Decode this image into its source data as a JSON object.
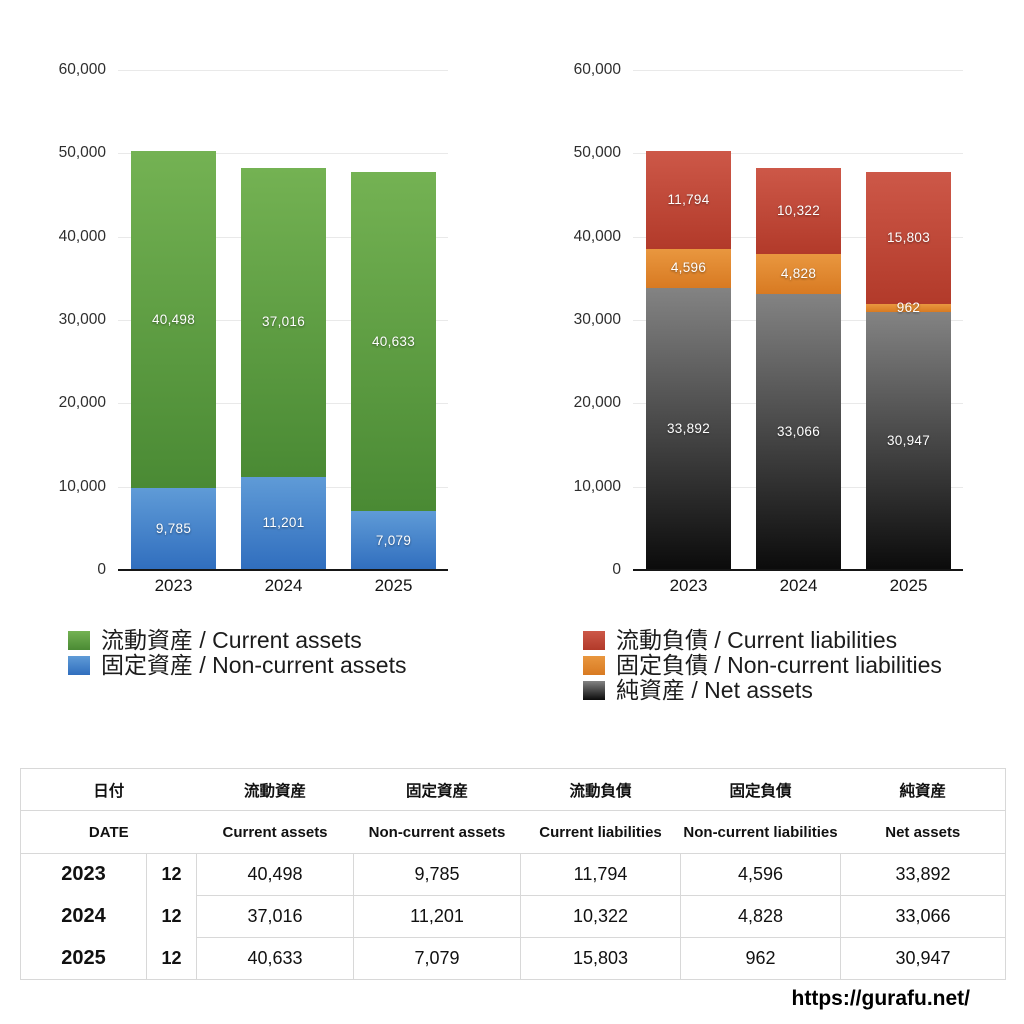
{
  "chart_data": [
    {
      "type": "bar",
      "stacked": true,
      "name": "assets",
      "title": "",
      "categories": [
        "2023",
        "2024",
        "2025"
      ],
      "ylim": [
        0,
        60000
      ],
      "grid": true,
      "legend_position": "bottom-left",
      "yticks": [
        {
          "value": 0,
          "label": "0"
        },
        {
          "value": 10000,
          "label": "10,000"
        },
        {
          "value": 20000,
          "label": "20,000"
        },
        {
          "value": 30000,
          "label": "30,000"
        },
        {
          "value": 40000,
          "label": "40,000"
        },
        {
          "value": 50000,
          "label": "50,000"
        },
        {
          "value": 60000,
          "label": "60,000"
        }
      ],
      "series": [
        {
          "name": "流動資産 / Current assets",
          "color": "#5ca142",
          "color_top": "#74b253",
          "color_bottom": "#4a8a34",
          "values": [
            40498,
            37016,
            40633
          ],
          "labels": [
            "40,498",
            "37,016",
            "40,633"
          ]
        },
        {
          "name": "固定資産 / Non-current assets",
          "color": "#3f7fcb",
          "color_top": "#5f9bd7",
          "color_bottom": "#306ebe",
          "values": [
            9785,
            11201,
            7079
          ],
          "labels": [
            "9,785",
            "11,201",
            "7,079"
          ]
        }
      ]
    },
    {
      "type": "bar",
      "stacked": true,
      "name": "liabilities-net-assets",
      "title": "",
      "categories": [
        "2023",
        "2024",
        "2025"
      ],
      "ylim": [
        0,
        60000
      ],
      "grid": true,
      "legend_position": "bottom-left",
      "yticks": [
        {
          "value": 0,
          "label": "0"
        },
        {
          "value": 10000,
          "label": "10,000"
        },
        {
          "value": 20000,
          "label": "20,000"
        },
        {
          "value": 30000,
          "label": "30,000"
        },
        {
          "value": 40000,
          "label": "40,000"
        },
        {
          "value": 50000,
          "label": "50,000"
        },
        {
          "value": 60000,
          "label": "60,000"
        }
      ],
      "series": [
        {
          "name": "流動負債 / Current liabilities",
          "color": "#c24936",
          "color_top": "#cd5848",
          "color_bottom": "#b23a2a",
          "values": [
            11794,
            10322,
            15803
          ],
          "labels": [
            "11,794",
            "10,322",
            "15,803"
          ]
        },
        {
          "name": "固定負債 / Non-current liabilities",
          "color": "#e08a31",
          "color_top": "#e9973f",
          "color_bottom": "#d87a22",
          "values": [
            4596,
            4828,
            962
          ],
          "labels": [
            "4,596",
            "4,828",
            "962"
          ]
        },
        {
          "name": "純資産 / Net assets",
          "color": "#3c3c3c",
          "color_top": "#838383",
          "color_bottom": "#0b0b0b",
          "values": [
            33892,
            33066,
            30947
          ],
          "labels": [
            "33,892",
            "33,066",
            "30,947"
          ]
        }
      ]
    }
  ],
  "table": {
    "header_row_ja": [
      "日付",
      "流動資産",
      "固定資産",
      "流動負債",
      "固定負債",
      "純資産"
    ],
    "header_row_en": [
      "DATE",
      "Current assets",
      "Non-current assets",
      "Current liabilities",
      "Non-current liabilities",
      "Net assets"
    ],
    "rows": [
      {
        "year": "2023",
        "month": "12",
        "values": [
          "40,498",
          "9,785",
          "11,794",
          "4,596",
          "33,892"
        ]
      },
      {
        "year": "2024",
        "month": "12",
        "values": [
          "37,016",
          "11,201",
          "10,322",
          "4,828",
          "33,066"
        ]
      },
      {
        "year": "2025",
        "month": "12",
        "values": [
          "40,633",
          "7,079",
          "15,803",
          "962",
          "30,947"
        ]
      }
    ]
  },
  "footer": {
    "url": "https://gurafu.net/"
  }
}
